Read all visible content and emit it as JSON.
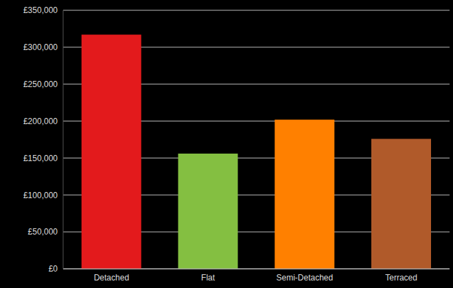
{
  "chart_data": {
    "type": "bar",
    "categories": [
      "Detached",
      "Flat",
      "Semi-Detached",
      "Terraced"
    ],
    "values": [
      317000,
      156000,
      202000,
      176000
    ],
    "colors": [
      "#e31a1c",
      "#84bf41",
      "#ff8000",
      "#b05a2a"
    ],
    "ylim": [
      0,
      350000
    ],
    "yticks": [
      {
        "value": 0,
        "label": "£0"
      },
      {
        "value": 50000,
        "label": "£50,000"
      },
      {
        "value": 100000,
        "label": "£100,000"
      },
      {
        "value": 150000,
        "label": "£150,000"
      },
      {
        "value": 200000,
        "label": "£200,000"
      },
      {
        "value": 250000,
        "label": "£250,000"
      },
      {
        "value": 300000,
        "label": "£300,000"
      },
      {
        "value": 350000,
        "label": "£350,000"
      }
    ],
    "grid": true
  }
}
